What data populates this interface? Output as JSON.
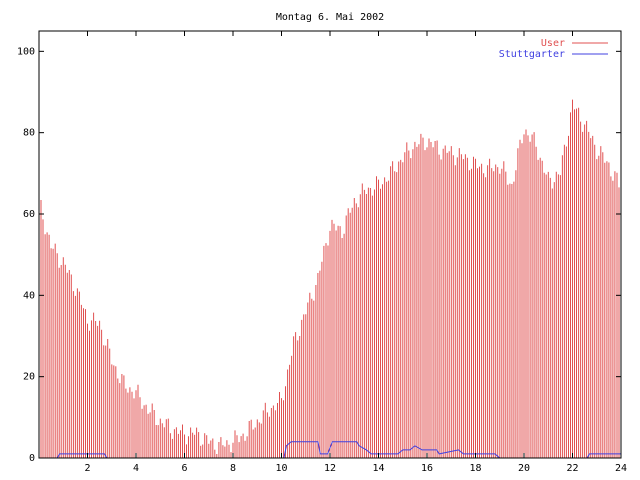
{
  "chart_data": {
    "type": "bar",
    "title": "Montag 6. Mai 2002",
    "xlabel": "",
    "ylabel": "",
    "xlim": [
      0,
      24
    ],
    "ylim": [
      0,
      105
    ],
    "x_ticks": [
      {
        "value": 2,
        "label": "2"
      },
      {
        "value": 4,
        "label": "4"
      },
      {
        "value": 6,
        "label": "6"
      },
      {
        "value": 8,
        "label": "8"
      },
      {
        "value": 10,
        "label": "10"
      },
      {
        "value": 12,
        "label": "12"
      },
      {
        "value": 14,
        "label": "14"
      },
      {
        "value": 16,
        "label": "16"
      },
      {
        "value": 18,
        "label": "18"
      },
      {
        "value": 20,
        "label": "20"
      },
      {
        "value": 22,
        "label": "22"
      },
      {
        "value": 24,
        "label": "24"
      }
    ],
    "y_ticks": [
      {
        "value": 0,
        "label": "0"
      },
      {
        "value": 20,
        "label": "20"
      },
      {
        "value": 40,
        "label": "40"
      },
      {
        "value": 60,
        "label": "60"
      },
      {
        "value": 80,
        "label": "80"
      },
      {
        "value": 100,
        "label": "100"
      }
    ],
    "grid": false,
    "legend_position": "top-right",
    "series": [
      {
        "name": "User",
        "style": "impulses",
        "color": "#e05050",
        "x": [
          0,
          0.5,
          1,
          1.5,
          2,
          2.5,
          3,
          3.5,
          4,
          4.5,
          5,
          5.5,
          6,
          6.5,
          7,
          7.5,
          8,
          8.5,
          9,
          9.5,
          10,
          10.5,
          11,
          11.5,
          12,
          12.5,
          13,
          13.5,
          14,
          14.5,
          15,
          15.5,
          16,
          16.5,
          17,
          17.5,
          18,
          18.5,
          19,
          19.5,
          20,
          20.5,
          21,
          21.5,
          22,
          22.5,
          23,
          23.5,
          24
        ],
        "y": [
          63,
          52,
          48,
          42,
          34,
          33,
          24,
          18,
          16,
          12,
          9,
          7,
          6,
          6,
          4,
          3,
          4,
          6,
          9,
          12,
          14,
          28,
          36,
          44,
          57,
          56,
          63,
          66,
          67,
          70,
          74,
          77,
          78,
          76,
          75,
          74,
          72,
          71,
          72,
          67,
          81,
          77,
          68,
          70,
          87,
          82,
          76,
          72,
          66
        ]
      },
      {
        "name": "Stuttgarter",
        "style": "line",
        "color": "#4040e0",
        "x": [
          0,
          0.75,
          0.85,
          2.7,
          2.8,
          10.1,
          10.2,
          10.4,
          11.5,
          11.6,
          11.9,
          12.1,
          13.1,
          13.2,
          13.5,
          13.7,
          14.8,
          15.0,
          15.3,
          15.5,
          15.8,
          16.4,
          16.5,
          17.3,
          17.5,
          18.8,
          19.0,
          22.6,
          22.7,
          24
        ],
        "y": [
          0,
          0,
          1,
          1,
          0,
          0,
          3,
          4,
          4,
          1,
          1,
          4,
          4,
          3,
          2,
          1,
          1,
          2,
          2,
          3,
          2,
          2,
          1,
          2,
          1,
          1,
          0,
          0,
          1,
          1
        ]
      }
    ]
  }
}
